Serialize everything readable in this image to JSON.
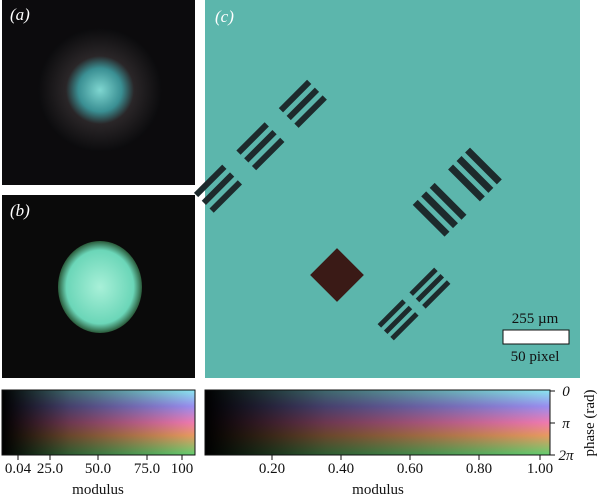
{
  "panels": {
    "a": {
      "label": "(a)"
    },
    "b": {
      "label": "(b)"
    },
    "c": {
      "label": "(c)",
      "scale_bar": {
        "length": "255 µm",
        "pixels": "50 pixel"
      }
    }
  },
  "colorbar_left": {
    "ticks": [
      "0.04",
      "25.0",
      "50.0",
      "75.0",
      "100"
    ],
    "xlabel": "modulus"
  },
  "colorbar_right": {
    "ticks": [
      "0.20",
      "0.40",
      "0.60",
      "0.80",
      "1.00"
    ],
    "xlabel": "modulus",
    "phase_ticks": [
      "0",
      "π",
      "2π"
    ],
    "phase_label": "phase (rad)"
  }
}
